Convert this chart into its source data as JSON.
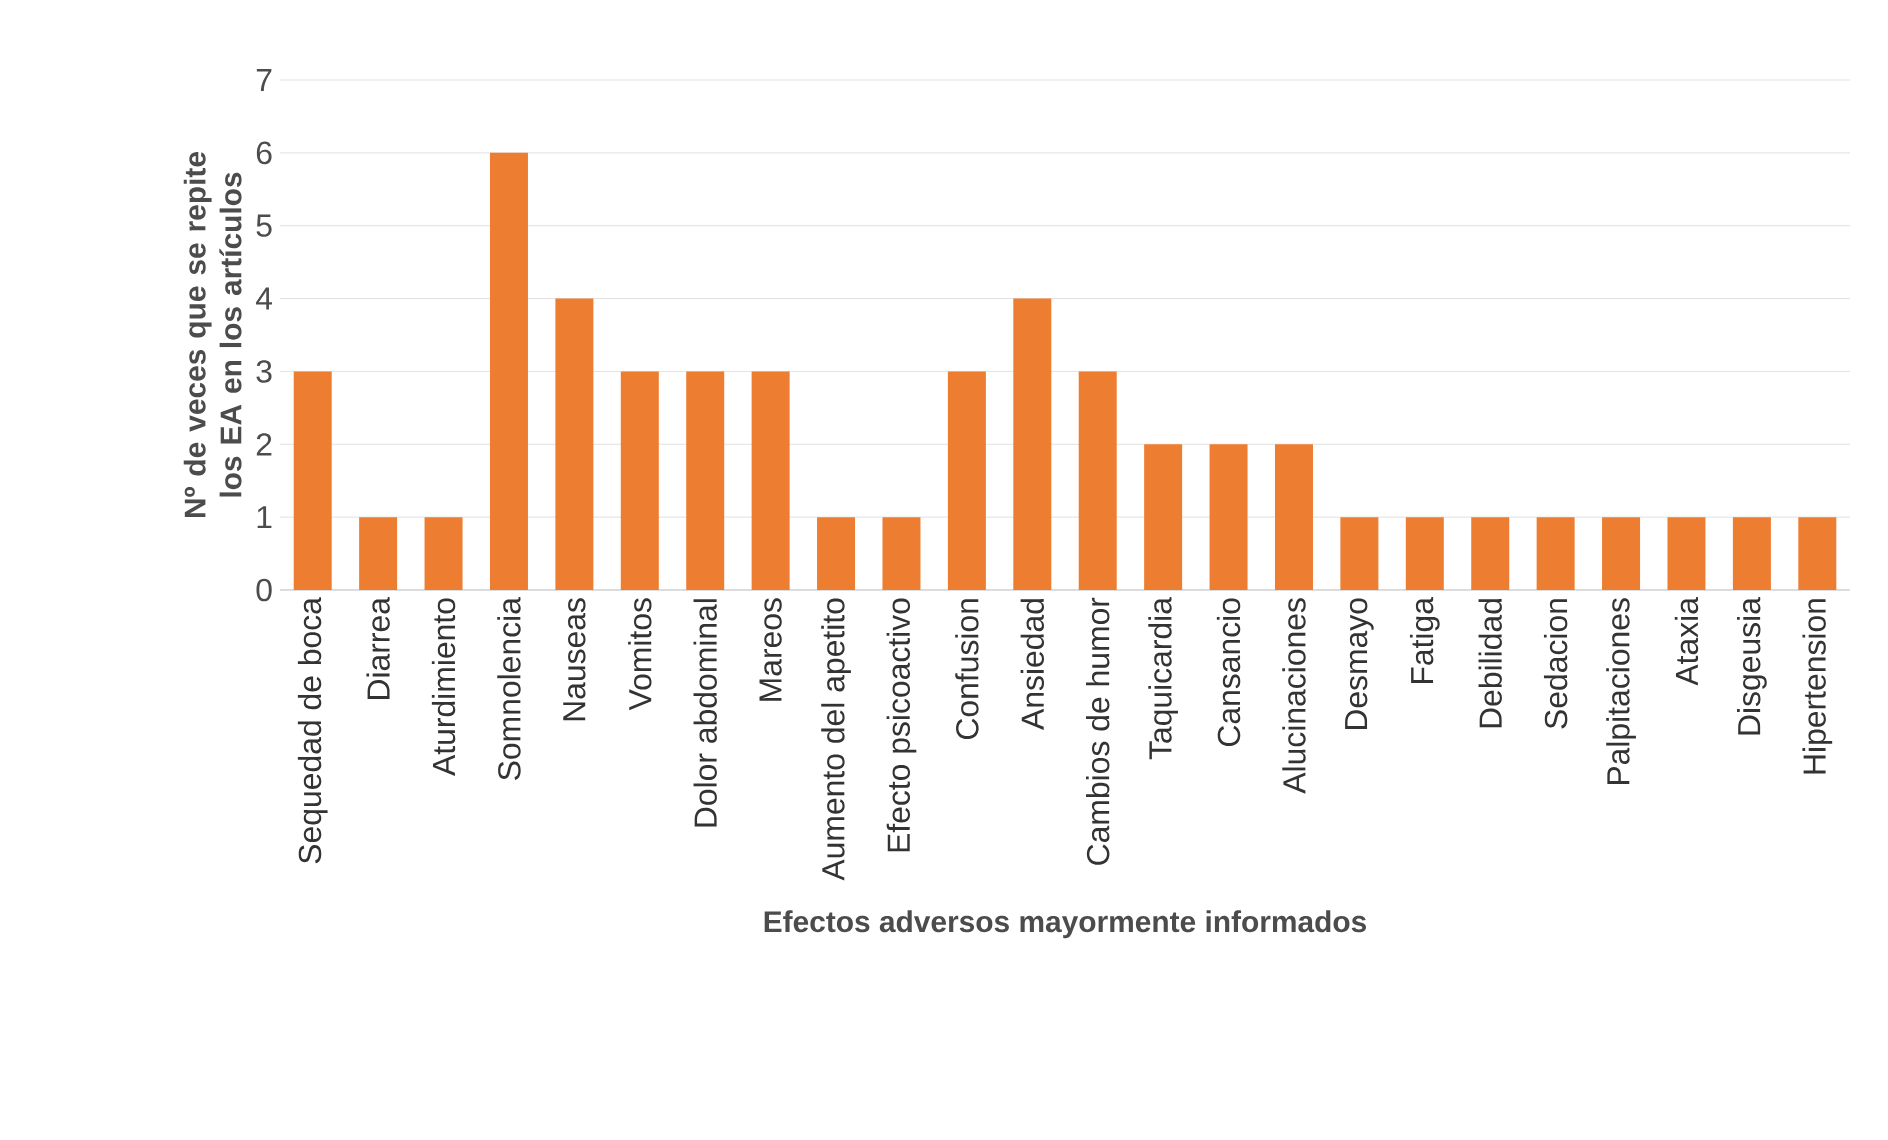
{
  "chart_data": {
    "type": "bar",
    "xlabel": "Efectos adversos mayormente informados",
    "ylabel": "Nº de veces que se repite los EA en los artículos",
    "categories": [
      "Sequedad de boca",
      "Diarrea",
      "Aturdimiento",
      "Somnolencia",
      "Nauseas",
      "Vomitos",
      "Dolor abdominal",
      "Mareos",
      "Aumento del apetito",
      "Efecto psicoactivo",
      "Confusion",
      "Ansiedad",
      "Cambios de humor",
      "Taquicardia",
      "Cansancio",
      "Alucinaciones",
      "Desmayo",
      "Fatiga",
      "Debilidad",
      "Sedacion",
      "Palpitaciones",
      "Ataxia",
      "Disgeusia",
      "Hipertension"
    ],
    "values": [
      3,
      1,
      1,
      6,
      4,
      3,
      3,
      3,
      1,
      1,
      3,
      4,
      3,
      2,
      2,
      2,
      1,
      1,
      1,
      1,
      1,
      1,
      1,
      1
    ],
    "color": "#ed7d31",
    "ylim": [
      0,
      7
    ],
    "yticks": [
      0,
      1,
      2,
      3,
      4,
      5,
      6,
      7
    ],
    "grid": "y"
  }
}
